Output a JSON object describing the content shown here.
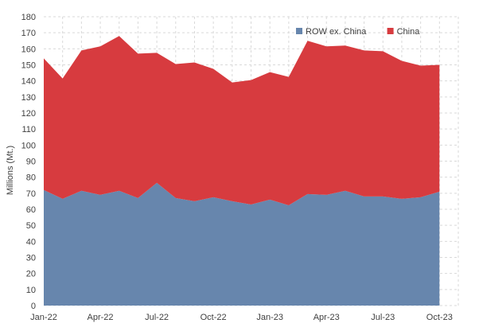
{
  "chart_data": {
    "type": "area",
    "stacked": true,
    "title": "",
    "xlabel": "",
    "ylabel": "Millions (Mt.)",
    "ylim": [
      0,
      180
    ],
    "yticks": [
      0,
      10,
      20,
      30,
      40,
      50,
      60,
      70,
      80,
      90,
      100,
      110,
      120,
      130,
      140,
      150,
      160,
      170,
      180
    ],
    "grid": true,
    "legend": "top-right",
    "x": [
      "Jan-22",
      "Feb-22",
      "Mar-22",
      "Apr-22",
      "May-22",
      "Jun-22",
      "Jul-22",
      "Aug-22",
      "Sep-22",
      "Oct-22",
      "Nov-22",
      "Dec-22",
      "Jan-23",
      "Feb-23",
      "Mar-23",
      "Apr-23",
      "May-23",
      "Jun-23",
      "Jul-23",
      "Aug-23",
      "Sep-23",
      "Oct-23"
    ],
    "xtick_labels": [
      "Jan-22",
      "Apr-22",
      "Jul-22",
      "Oct-22",
      "Jan-23",
      "Apr-23",
      "Jul-23",
      "Oct-23"
    ],
    "xtick_index": [
      0,
      3,
      6,
      9,
      12,
      15,
      18,
      21
    ],
    "series": [
      {
        "name": "ROW ex. China",
        "color": "#6786ad",
        "values": [
          72,
          66.5,
          71.5,
          69,
          71.5,
          67,
          76.5,
          67,
          65,
          67.5,
          65,
          63,
          66,
          62.5,
          69.5,
          69,
          71.5,
          68,
          68,
          66.5,
          67.5,
          71
        ]
      },
      {
        "name": "China",
        "color": "#d73b3f",
        "values": [
          82,
          75,
          87.5,
          92.5,
          96.5,
          90,
          81,
          83.5,
          86.5,
          80,
          74,
          77.5,
          79.5,
          80,
          95.5,
          92.5,
          90.5,
          91,
          90.5,
          86,
          82,
          79
        ]
      }
    ]
  }
}
